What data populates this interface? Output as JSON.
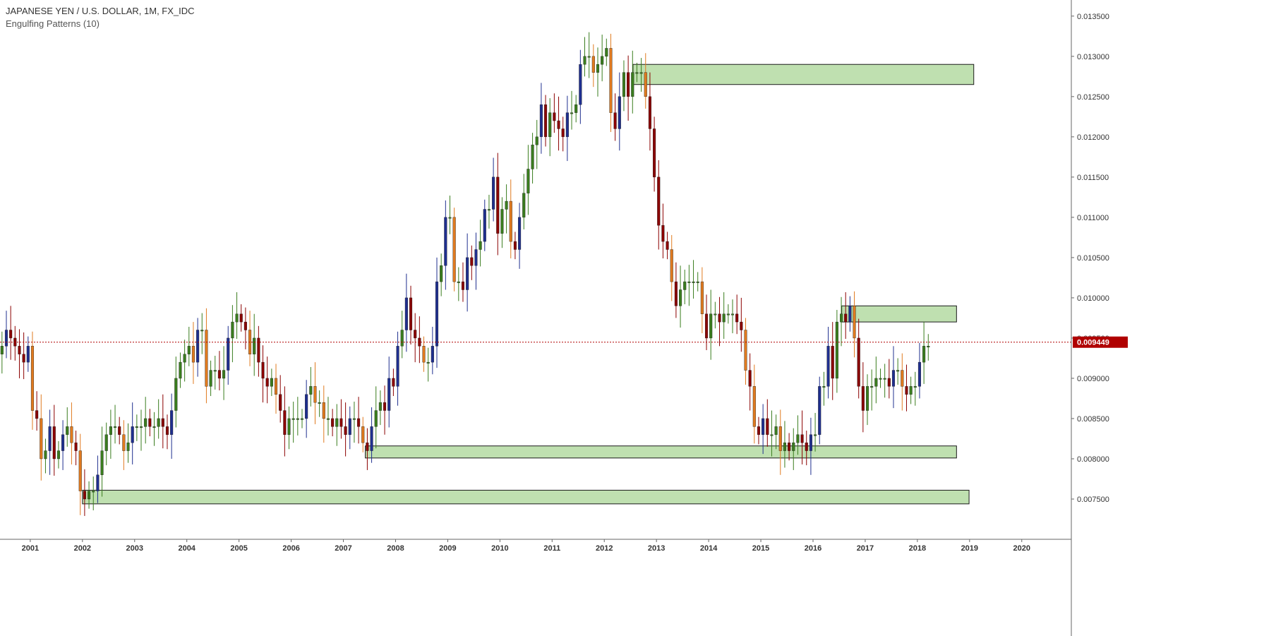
{
  "header": {
    "title": "JAPANESE YEN / U.S. DOLLAR, 1M, FX_IDC",
    "subtitle": "Engulfing Patterns (10)"
  },
  "colors": {
    "bull": "#3a7d1e",
    "bear": "#8b0000",
    "bull_engulf": "#1f2f8f",
    "bear_engulf": "#e07a1f",
    "zone_fill": "#bfe0b0",
    "zone_stroke": "#1a1a1a",
    "price_line": "#b00000",
    "axis_line": "#666666"
  },
  "chart_data": {
    "type": "candlestick",
    "yaxis": {
      "side": "right",
      "ticks": [
        "0.007500",
        "0.008000",
        "0.008500",
        "0.009000",
        "0.009500",
        "0.010000",
        "0.010500",
        "0.011000",
        "0.011500",
        "0.012000",
        "0.012500",
        "0.013000",
        "0.013500"
      ],
      "tick_values": [
        0.0075,
        0.008,
        0.0085,
        0.009,
        0.0095,
        0.01,
        0.0105,
        0.011,
        0.0115,
        0.012,
        0.0125,
        0.013,
        0.0135
      ],
      "ylim": [
        0.007,
        0.0137
      ]
    },
    "xaxis": {
      "ticks": [
        "2001",
        "2002",
        "2003",
        "2004",
        "2005",
        "2006",
        "2007",
        "2008",
        "2009",
        "2010",
        "2011",
        "2012",
        "2013",
        "2014",
        "2015",
        "2016",
        "2017",
        "2018",
        "2019",
        "2020"
      ],
      "tick_years": [
        2001,
        2002,
        2003,
        2004,
        2005,
        2006,
        2007,
        2008,
        2009,
        2010,
        2011,
        2012,
        2013,
        2014,
        2015,
        2016,
        2017,
        2018,
        2019,
        2020
      ],
      "xlim": [
        2000.42,
        2020.95
      ]
    },
    "current_price": {
      "value": 0.009449,
      "label": "0.009449"
    },
    "zones": [
      {
        "x0": 2012.55,
        "x1": 2019.08,
        "y_low": 0.01265,
        "y_high": 0.0129
      },
      {
        "x0": 2016.55,
        "x1": 2018.75,
        "y_low": 0.0097,
        "y_high": 0.0099
      },
      {
        "x0": 2007.42,
        "x1": 2018.75,
        "y_low": 0.00801,
        "y_high": 0.00816
      },
      {
        "x0": 2002.0,
        "x1": 2018.99,
        "y_low": 0.00744,
        "y_high": 0.00761
      }
    ],
    "monthly_close": [
      {
        "year": 2000,
        "closes": [
          0.0093,
          0.0094,
          0.0096,
          0.0095,
          0.0094,
          0.0093,
          0.0092,
          0.0094
        ]
      },
      {
        "year": 2001,
        "closes": [
          0.0086,
          0.0085,
          0.008,
          0.0081,
          0.0084,
          0.008,
          0.0081,
          0.0083,
          0.0084,
          0.0082,
          0.0081,
          0.0076
        ]
      },
      {
        "year": 2002,
        "closes": [
          0.0075,
          0.0076,
          0.0076,
          0.0078,
          0.0081,
          0.0083,
          0.0084,
          0.0084,
          0.0083,
          0.0081,
          0.0082,
          0.0084
        ]
      },
      {
        "year": 2003,
        "closes": [
          0.0084,
          0.0084,
          0.0085,
          0.0084,
          0.0084,
          0.0085,
          0.0084,
          0.0083,
          0.0086,
          0.009,
          0.0092,
          0.0093
        ]
      },
      {
        "year": 2004,
        "closes": [
          0.0094,
          0.0092,
          0.0096,
          0.0096,
          0.0089,
          0.0091,
          0.0091,
          0.009,
          0.0091,
          0.0095,
          0.0097,
          0.0098
        ]
      },
      {
        "year": 2005,
        "closes": [
          0.0097,
          0.0096,
          0.0093,
          0.0095,
          0.0092,
          0.009,
          0.0089,
          0.009,
          0.0088,
          0.0086,
          0.0083,
          0.0085
        ]
      },
      {
        "year": 2006,
        "closes": [
          0.0085,
          0.0085,
          0.0085,
          0.0088,
          0.0089,
          0.0087,
          0.0087,
          0.0085,
          0.0085,
          0.0084,
          0.0085,
          0.0084
        ]
      },
      {
        "year": 2007,
        "closes": [
          0.0083,
          0.0085,
          0.0085,
          0.0084,
          0.0082,
          0.0081,
          0.0084,
          0.0086,
          0.0087,
          0.0086,
          0.009,
          0.0089
        ]
      },
      {
        "year": 2008,
        "closes": [
          0.0094,
          0.0096,
          0.01,
          0.0096,
          0.0095,
          0.0094,
          0.0092,
          0.0092,
          0.0094,
          0.0102,
          0.0104,
          0.011
        ]
      },
      {
        "year": 2009,
        "closes": [
          0.011,
          0.0102,
          0.0102,
          0.0101,
          0.0105,
          0.0104,
          0.0106,
          0.0107,
          0.0111,
          0.0111,
          0.0115,
          0.0108
        ]
      },
      {
        "year": 2010,
        "closes": [
          0.0111,
          0.0112,
          0.0107,
          0.0106,
          0.011,
          0.0113,
          0.0116,
          0.0119,
          0.012,
          0.0124,
          0.012,
          0.0123
        ]
      },
      {
        "year": 2011,
        "closes": [
          0.0122,
          0.0121,
          0.012,
          0.0123,
          0.0123,
          0.0124,
          0.0129,
          0.013,
          0.013,
          0.0128,
          0.0129,
          0.013
        ]
      },
      {
        "year": 2012,
        "closes": [
          0.0131,
          0.0123,
          0.0121,
          0.0125,
          0.0128,
          0.0125,
          0.0128,
          0.0128,
          0.0128,
          0.0125,
          0.0121,
          0.0115
        ]
      },
      {
        "year": 2013,
        "closes": [
          0.0109,
          0.0107,
          0.0106,
          0.0102,
          0.0099,
          0.0101,
          0.0102,
          0.0102,
          0.0102,
          0.0102,
          0.0098,
          0.0095
        ]
      },
      {
        "year": 2014,
        "closes": [
          0.0098,
          0.0098,
          0.0097,
          0.0098,
          0.0098,
          0.0098,
          0.0097,
          0.0096,
          0.0091,
          0.0089,
          0.0084,
          0.0083
        ]
      },
      {
        "year": 2015,
        "closes": [
          0.0085,
          0.0083,
          0.0083,
          0.0084,
          0.0081,
          0.0082,
          0.0081,
          0.0082,
          0.0083,
          0.0082,
          0.0081,
          0.0083
        ]
      },
      {
        "year": 2016,
        "closes": [
          0.0083,
          0.0089,
          0.0089,
          0.0094,
          0.009,
          0.0097,
          0.0098,
          0.0097,
          0.0099,
          0.0095,
          0.0089,
          0.0086
        ]
      },
      {
        "year": 2017,
        "closes": [
          0.0089,
          0.0089,
          0.009,
          0.009,
          0.009,
          0.0089,
          0.0091,
          0.0091,
          0.0089,
          0.0088,
          0.0089,
          0.0089
        ]
      },
      {
        "year": 2018,
        "closes": [
          0.0092,
          0.0094,
          0.0094
        ]
      }
    ]
  }
}
